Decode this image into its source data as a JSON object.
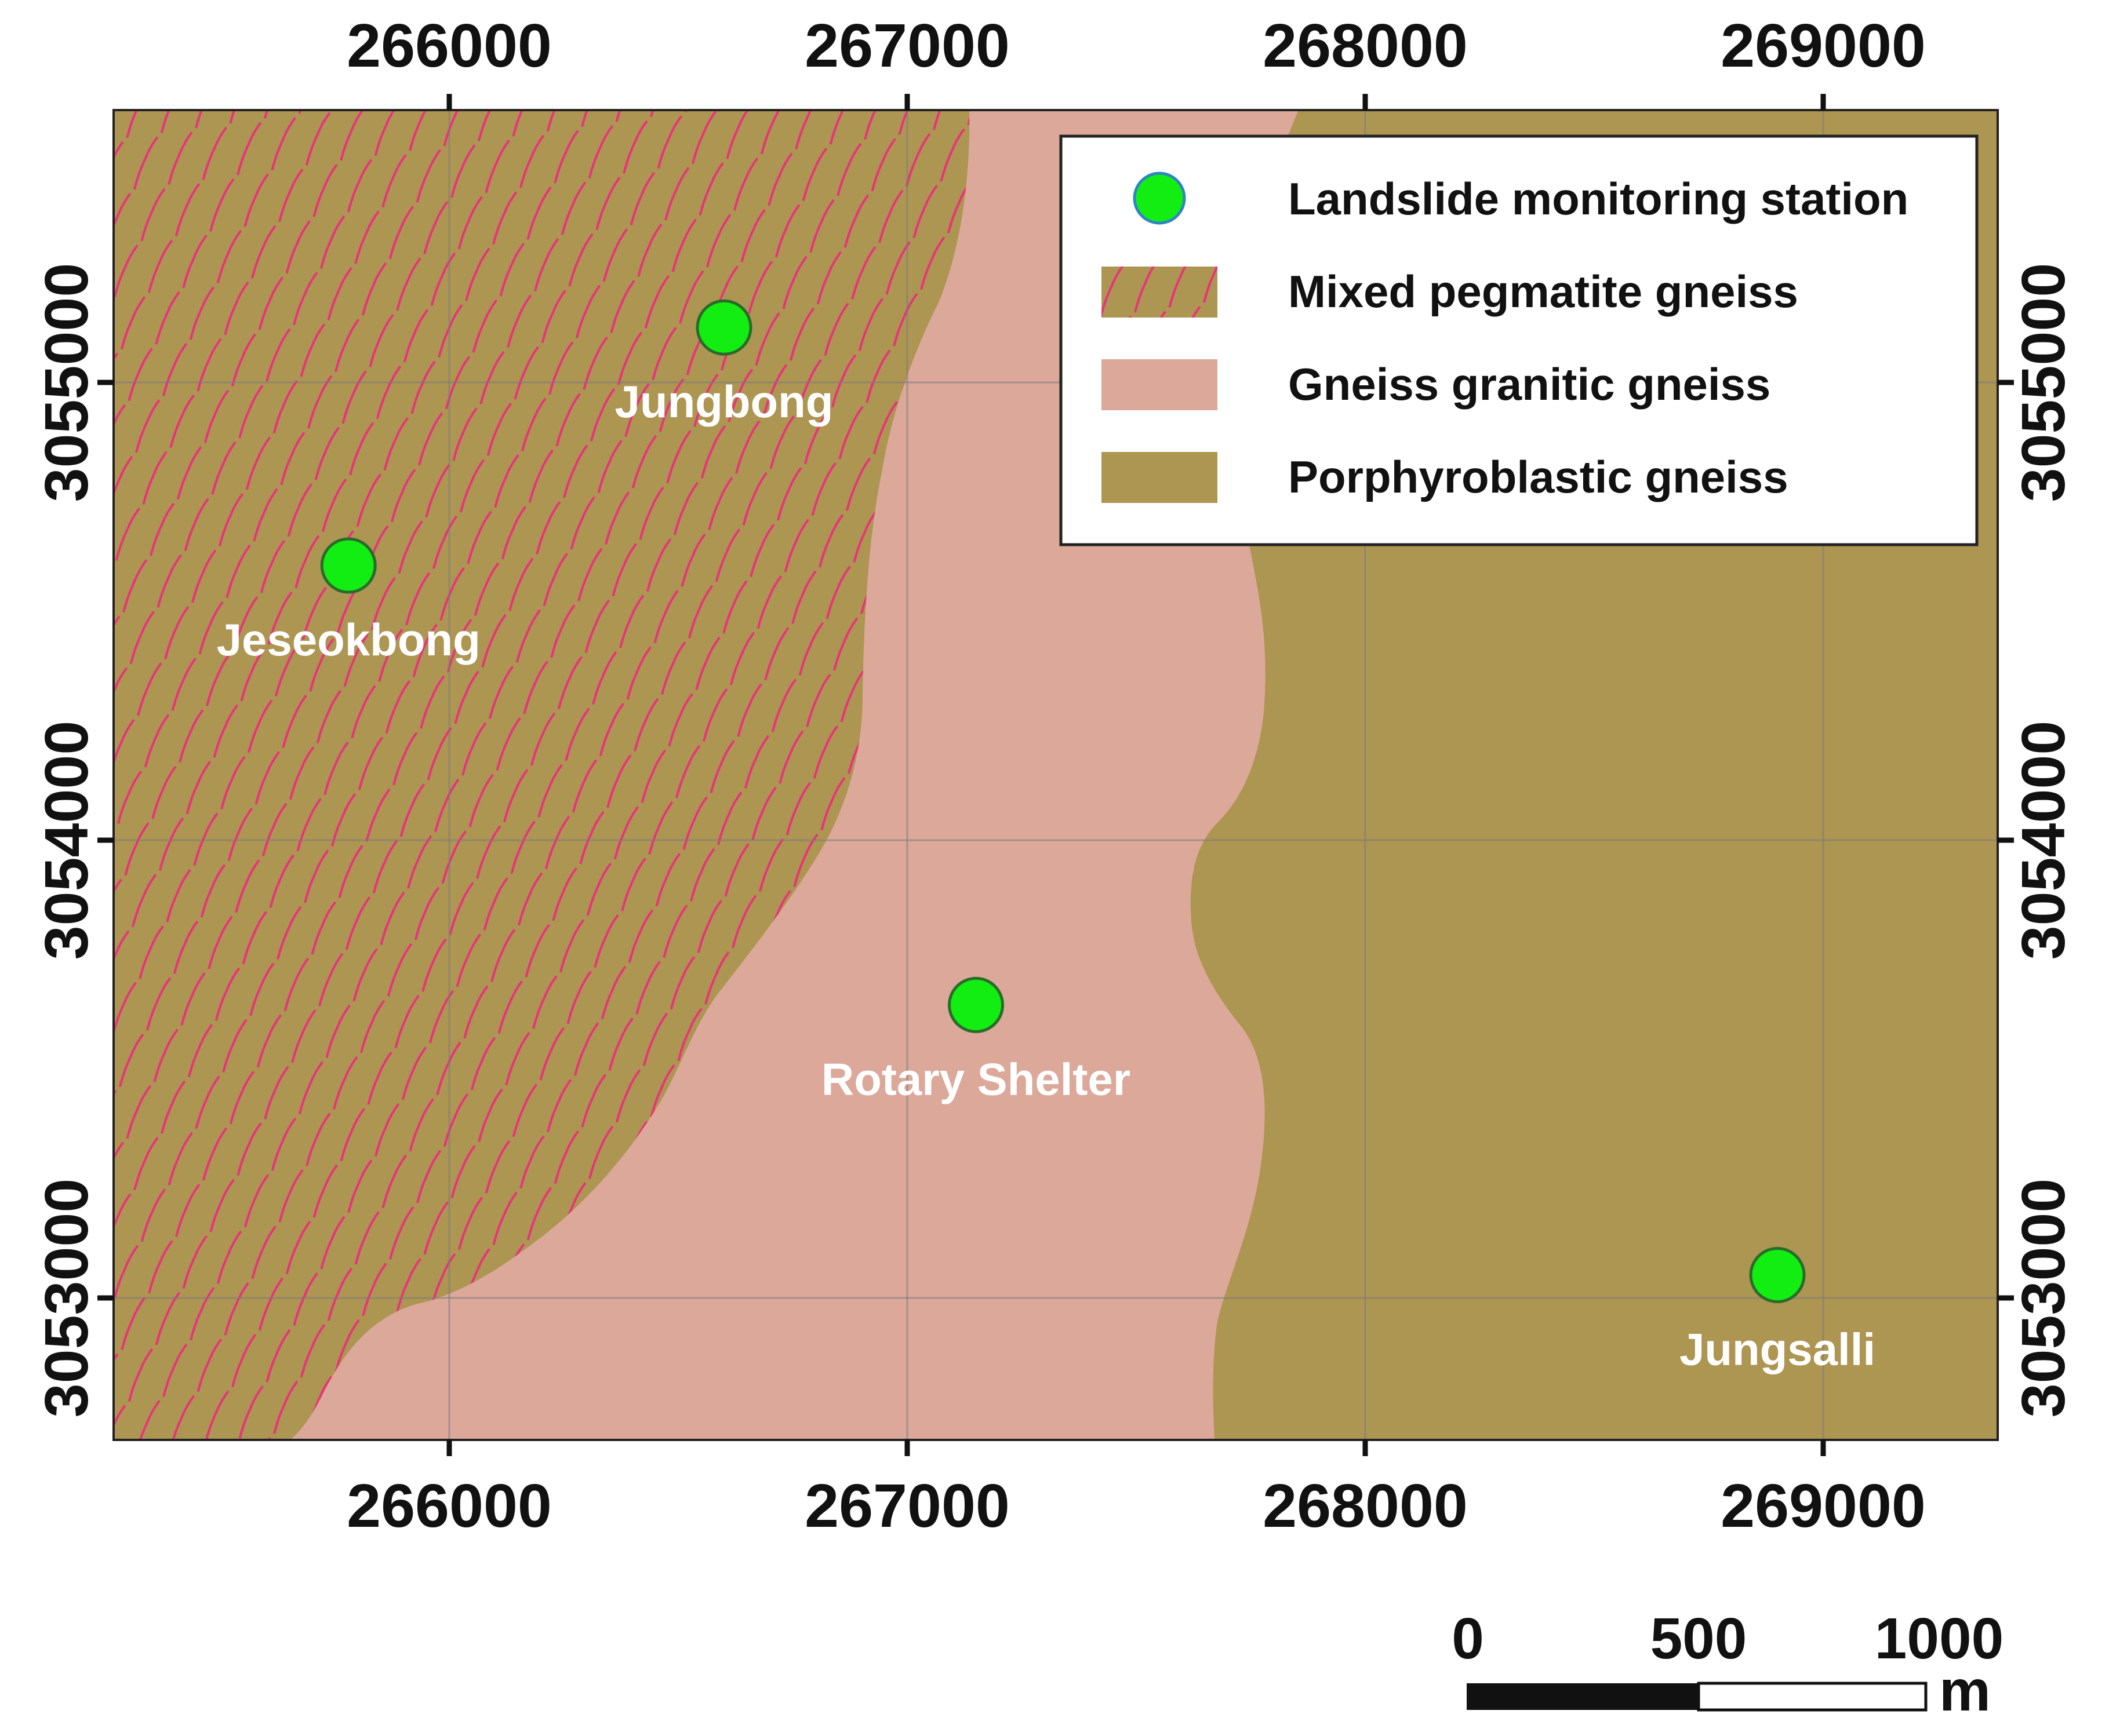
{
  "map": {
    "x_ticks": [
      "266000",
      "267000",
      "268000",
      "269000"
    ],
    "y_ticks": [
      "3055000",
      "3054000",
      "3053000"
    ],
    "x_tick_values": [
      266000,
      267000,
      268000,
      269000
    ],
    "y_tick_values": [
      3055000,
      3054000,
      3053000
    ],
    "colors": {
      "porphyroblastic": "#ad9552",
      "granitic": "#dba89a",
      "pegmatite_base": "#ad9552",
      "pegmatite_hatch": "#e8337a",
      "station_fill": "#12ee12",
      "station_stroke": "#2a6b2a",
      "grid": "#7a7a7a"
    }
  },
  "stations": [
    {
      "name": "Jungbong",
      "x": 266600,
      "y": 3055120
    },
    {
      "name": "Jeseokbong",
      "x": 265780,
      "y": 3054600
    },
    {
      "name": "Rotary Shelter",
      "x": 267150,
      "y": 3053640
    },
    {
      "name": "Jungsalli",
      "x": 268900,
      "y": 3053050
    }
  ],
  "legend": {
    "items": [
      {
        "label": "Landslide monitoring station",
        "icon": "station-circle-icon"
      },
      {
        "label": "Mixed pegmatite gneiss",
        "icon": "hatched-swatch-icon"
      },
      {
        "label": "Gneiss granitic gneiss",
        "icon": "pink-swatch-icon"
      },
      {
        "label": "Porphyroblastic gneiss",
        "icon": "brown-swatch-icon"
      }
    ]
  },
  "scale_bar": {
    "labels": [
      "0",
      "500",
      "1000"
    ],
    "unit": "m"
  }
}
